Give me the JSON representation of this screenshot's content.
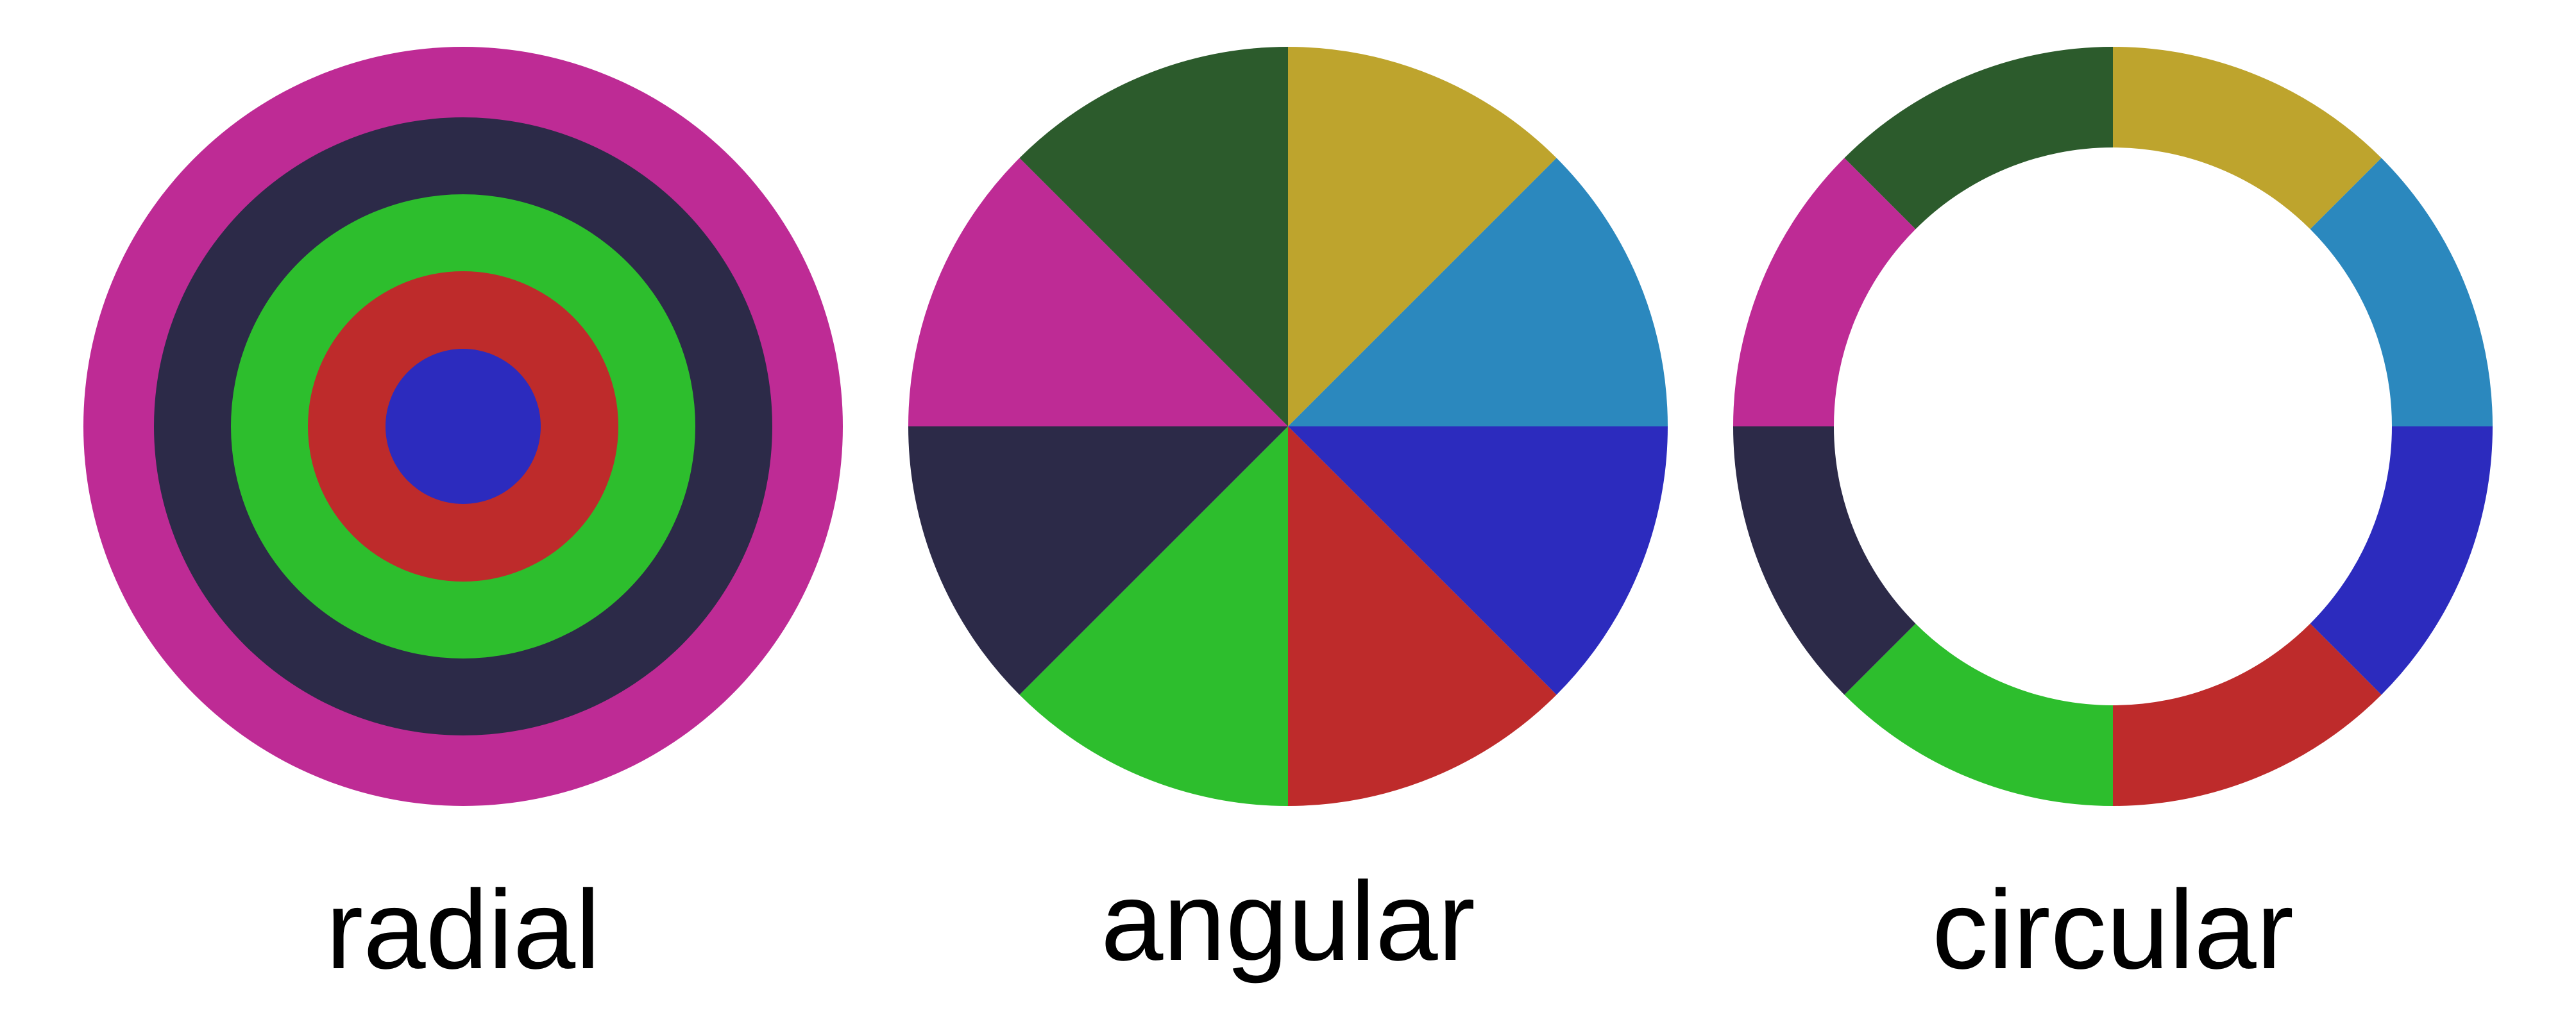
{
  "palette": {
    "magenta": "#BE2B95",
    "dark_navy": "#2C2A48",
    "green": "#2DBE2D",
    "red": "#BE2B2B",
    "blue": "#2C2BBE",
    "dark_green": "#2C5B2C",
    "gold": "#BEA42D",
    "sky_blue": "#2B88BE",
    "background": "#FFFFFF"
  },
  "panels": [
    {
      "id": "radial",
      "label": "radial",
      "kind": "concentric-rings",
      "rings_outer_to_inner": [
        "#BE2B95",
        "#2C2A48",
        "#2DBE2D",
        "#BE2B2B",
        "#2C2BBE"
      ]
    },
    {
      "id": "angular",
      "label": "angular",
      "kind": "pie-sectors",
      "sectors_clockwise_from_top": [
        "#BEA42D",
        "#2B88BE",
        "#2C2BBE",
        "#BE2B2B",
        "#2DBE2D",
        "#2C2A48",
        "#BE2B95",
        "#2C5B2C"
      ]
    },
    {
      "id": "circular",
      "label": "circular",
      "kind": "ring-sectors",
      "sectors_clockwise_from_top": [
        "#BEA42D",
        "#2B88BE",
        "#2C2BBE",
        "#BE2B2B",
        "#2DBE2D",
        "#2C2A48",
        "#BE2B95",
        "#2C5B2C"
      ]
    }
  ]
}
